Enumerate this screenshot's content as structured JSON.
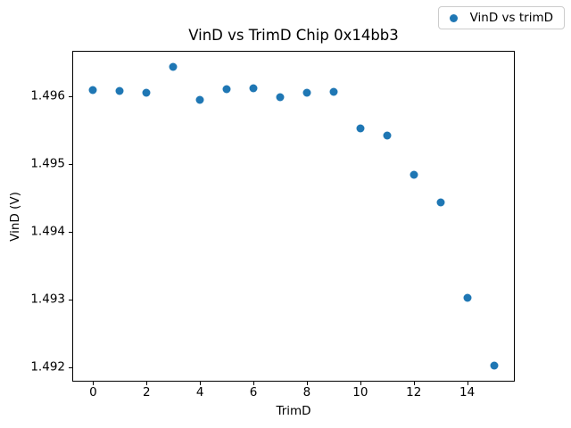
{
  "figure": {
    "title": "VinD vs TrimD Chip 0x14bb3",
    "xlabel": "TrimD",
    "ylabel": "VinD (V)",
    "legend_label": "VinD vs trimD",
    "marker_color": "#1f77b4",
    "background_color": "#ffffff",
    "spine_color": "#000000"
  },
  "chart_data": {
    "type": "scatter",
    "title": "VinD vs TrimD Chip 0x14bb3",
    "xlabel": "TrimD",
    "ylabel": "VinD (V)",
    "legend": [
      "VinD vs trimD"
    ],
    "legend_position": "upper right",
    "grid": false,
    "marker": "circle",
    "marker_color": "#1f77b4",
    "x": [
      0,
      1,
      2,
      3,
      4,
      5,
      6,
      7,
      8,
      9,
      10,
      11,
      12,
      13,
      14,
      15
    ],
    "y": [
      1.49609,
      1.49608,
      1.49605,
      1.49644,
      1.49595,
      1.49611,
      1.49612,
      1.49599,
      1.49605,
      1.49607,
      1.49553,
      1.49542,
      1.49484,
      1.49443,
      1.49303,
      1.49202
    ],
    "xlim": [
      -0.75,
      15.75
    ],
    "ylim": [
      1.4918,
      1.49666
    ],
    "xticks": [
      0,
      2,
      4,
      6,
      8,
      10,
      12,
      14
    ],
    "yticks": [
      1.492,
      1.493,
      1.494,
      1.495,
      1.496
    ],
    "ytick_decimals": 3
  }
}
